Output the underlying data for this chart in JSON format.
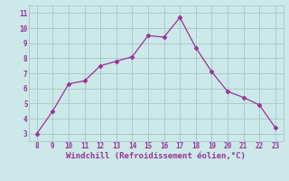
{
  "x": [
    8,
    9,
    10,
    11,
    12,
    13,
    14,
    15,
    16,
    17,
    18,
    19,
    20,
    21,
    22,
    23
  ],
  "y": [
    3.0,
    4.5,
    6.3,
    6.5,
    7.5,
    7.8,
    8.1,
    9.5,
    9.4,
    10.7,
    8.7,
    7.1,
    5.8,
    5.4,
    4.9,
    3.4
  ],
  "line_color": "#993399",
  "marker_color": "#993399",
  "bg_color": "#cce8e8",
  "grid_color": "#aacccc",
  "xlabel": "Windchill (Refroidissement éolien,°C)",
  "xlabel_color": "#993399",
  "tick_color": "#993399",
  "xlim": [
    7.5,
    23.5
  ],
  "ylim": [
    2.5,
    11.5
  ],
  "xticks": [
    8,
    9,
    10,
    11,
    12,
    13,
    14,
    15,
    16,
    17,
    18,
    19,
    20,
    21,
    22,
    23
  ],
  "yticks": [
    3,
    4,
    5,
    6,
    7,
    8,
    9,
    10,
    11
  ],
  "figsize": [
    3.2,
    2.0
  ],
  "dpi": 100,
  "bottom_bar_color": "#993399",
  "bottom_bar_height": 0.03
}
